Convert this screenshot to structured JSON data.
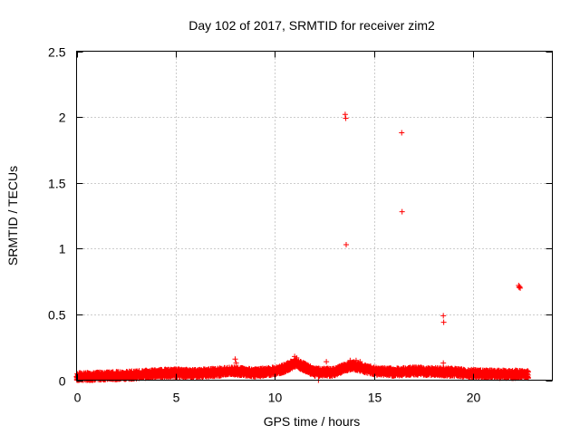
{
  "chart_data": {
    "type": "scatter",
    "title": "Day 102 of 2017, SRMTID for receiver zim2",
    "xlabel": "GPS time / hours",
    "ylabel": "SRMTID / TECUs",
    "xlim": [
      0,
      24
    ],
    "ylim": [
      0,
      2.5
    ],
    "x_ticks": [
      0,
      5,
      10,
      15,
      20
    ],
    "x_tick_labels": [
      "0",
      "5",
      "10",
      "15",
      "20"
    ],
    "y_ticks": [
      0,
      0.5,
      1,
      1.5,
      2,
      2.5
    ],
    "y_tick_labels": [
      "0",
      "0.5",
      "1",
      "1.5",
      "2",
      "2.5"
    ],
    "grid": true,
    "marker": "+",
    "color": "#ff0000",
    "series": [
      {
        "name": "SRMTID",
        "baseline": {
          "x_range": [
            0,
            22.8
          ],
          "level": [
            [
              0,
              0.025
            ],
            [
              1,
              0.03
            ],
            [
              2,
              0.035
            ],
            [
              3,
              0.04
            ],
            [
              4,
              0.05
            ],
            [
              5,
              0.055
            ],
            [
              6,
              0.05
            ],
            [
              7,
              0.06
            ],
            [
              8,
              0.07
            ],
            [
              9,
              0.055
            ],
            [
              10,
              0.07
            ],
            [
              10.5,
              0.09
            ],
            [
              11,
              0.13
            ],
            [
              11.5,
              0.1
            ],
            [
              12,
              0.06
            ],
            [
              13,
              0.06
            ],
            [
              13.6,
              0.1
            ],
            [
              14,
              0.11
            ],
            [
              15,
              0.07
            ],
            [
              16,
              0.06
            ],
            [
              17,
              0.07
            ],
            [
              18,
              0.065
            ],
            [
              19,
              0.06
            ],
            [
              20,
              0.05
            ],
            [
              21,
              0.045
            ],
            [
              22,
              0.045
            ],
            [
              22.8,
              0.045
            ]
          ],
          "spread": 0.03
        },
        "outliers": [
          {
            "x": 8.0,
            "y": 0.16
          },
          {
            "x": 8.05,
            "y": 0.13
          },
          {
            "x": 11.0,
            "y": 0.18
          },
          {
            "x": 11.1,
            "y": 0.17
          },
          {
            "x": 12.2,
            "y": 0.0
          },
          {
            "x": 12.6,
            "y": 0.14
          },
          {
            "x": 13.55,
            "y": 2.02
          },
          {
            "x": 13.58,
            "y": 1.99
          },
          {
            "x": 13.6,
            "y": 1.03
          },
          {
            "x": 13.8,
            "y": 0.15
          },
          {
            "x": 14.1,
            "y": 0.15
          },
          {
            "x": 14.3,
            "y": 0.14
          },
          {
            "x": 16.4,
            "y": 1.88
          },
          {
            "x": 16.42,
            "y": 1.28
          },
          {
            "x": 18.5,
            "y": 0.49
          },
          {
            "x": 18.52,
            "y": 0.44
          },
          {
            "x": 18.5,
            "y": 0.13
          },
          {
            "x": 22.3,
            "y": 0.72
          },
          {
            "x": 22.35,
            "y": 0.71
          },
          {
            "x": 22.38,
            "y": 0.7
          },
          {
            "x": 22.32,
            "y": 0.705
          }
        ]
      }
    ]
  }
}
